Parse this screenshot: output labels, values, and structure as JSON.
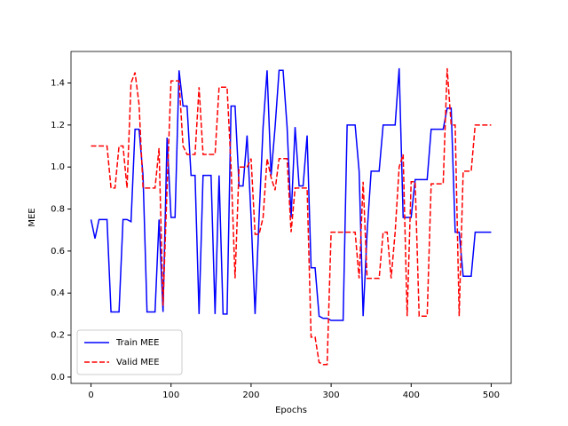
{
  "chart_data": {
    "type": "line",
    "xlabel": "Epochs",
    "ylabel": "MEE",
    "x": [
      0,
      5,
      10,
      15,
      20,
      25,
      30,
      35,
      40,
      45,
      50,
      55,
      60,
      65,
      70,
      75,
      80,
      85,
      90,
      95,
      100,
      105,
      110,
      115,
      120,
      125,
      130,
      135,
      140,
      145,
      150,
      155,
      160,
      165,
      170,
      175,
      180,
      185,
      190,
      195,
      200,
      205,
      210,
      215,
      220,
      225,
      230,
      235,
      240,
      245,
      250,
      255,
      260,
      265,
      270,
      275,
      280,
      285,
      290,
      295,
      300,
      305,
      310,
      315,
      320,
      325,
      330,
      335,
      340,
      345,
      350,
      355,
      360,
      365,
      370,
      375,
      380,
      385,
      390,
      395,
      400,
      405,
      410,
      415,
      420,
      425,
      430,
      435,
      440,
      445,
      450,
      455,
      460,
      465,
      470,
      475,
      480,
      485,
      490,
      495,
      500
    ],
    "series": [
      {
        "name": "Train MEE",
        "color": "#0000ff",
        "linestyle": "solid",
        "values": [
          0.75,
          0.66,
          0.75,
          0.75,
          0.75,
          0.31,
          0.31,
          0.31,
          0.75,
          0.75,
          0.74,
          1.18,
          1.18,
          0.96,
          0.31,
          0.31,
          0.31,
          0.75,
          0.31,
          1.14,
          0.76,
          0.76,
          1.46,
          1.29,
          1.29,
          0.96,
          0.96,
          0.3,
          0.96,
          0.96,
          0.96,
          0.3,
          0.96,
          0.3,
          0.3,
          1.29,
          1.29,
          0.91,
          0.91,
          1.15,
          0.76,
          0.3,
          0.76,
          1.19,
          1.46,
          0.96,
          1.19,
          1.46,
          1.46,
          1.19,
          0.76,
          1.19,
          0.91,
          0.91,
          1.15,
          0.52,
          0.52,
          0.29,
          0.28,
          0.28,
          0.27,
          0.27,
          0.27,
          0.27,
          1.2,
          1.2,
          1.2,
          0.98,
          0.29,
          0.69,
          0.98,
          0.98,
          0.98,
          1.2,
          1.2,
          1.2,
          1.2,
          1.47,
          0.76,
          0.76,
          0.76,
          0.94,
          0.94,
          0.94,
          0.94,
          1.18,
          1.18,
          1.18,
          1.18,
          1.28,
          1.28,
          0.69,
          0.69,
          0.48,
          0.48,
          0.48,
          0.69,
          0.69,
          0.69,
          0.69,
          0.69
        ]
      },
      {
        "name": "Valid MEE",
        "color": "#ff0000",
        "linestyle": "dashed",
        "values": [
          1.1,
          1.1,
          1.1,
          1.1,
          1.1,
          0.9,
          0.9,
          1.1,
          1.1,
          0.9,
          1.4,
          1.45,
          1.3,
          0.9,
          0.9,
          0.9,
          0.9,
          1.09,
          0.34,
          0.9,
          1.41,
          1.41,
          1.41,
          1.1,
          1.06,
          1.06,
          1.06,
          1.38,
          1.06,
          1.06,
          1.06,
          1.06,
          1.38,
          1.38,
          1.38,
          1.0,
          0.47,
          1.0,
          1.0,
          1.0,
          1.04,
          0.68,
          0.68,
          0.76,
          1.04,
          0.95,
          0.89,
          1.04,
          1.04,
          1.04,
          0.69,
          0.9,
          0.9,
          0.9,
          0.9,
          0.19,
          0.19,
          0.07,
          0.06,
          0.06,
          0.69,
          0.69,
          0.69,
          0.69,
          0.69,
          0.69,
          0.69,
          0.47,
          0.93,
          0.47,
          0.47,
          0.47,
          0.47,
          0.69,
          0.69,
          0.47,
          0.69,
          1.0,
          1.06,
          0.29,
          0.93,
          0.93,
          0.29,
          0.29,
          0.29,
          0.92,
          0.92,
          0.92,
          0.92,
          1.47,
          1.2,
          1.2,
          0.29,
          0.98,
          0.98,
          0.98,
          1.2,
          1.2,
          1.2,
          1.2,
          1.2
        ]
      }
    ],
    "xlim": [
      -25,
      525
    ],
    "ylim": [
      -0.03,
      1.55
    ],
    "xticks": [
      0,
      100,
      200,
      300,
      400,
      500
    ],
    "yticks": [
      {
        "value": 0,
        "label": "0.0"
      },
      0.2,
      0.4,
      0.6,
      0.8,
      {
        "value": 1,
        "label": "1.0"
      },
      1.2,
      1.4
    ],
    "grid": false,
    "legend": "lower left"
  }
}
